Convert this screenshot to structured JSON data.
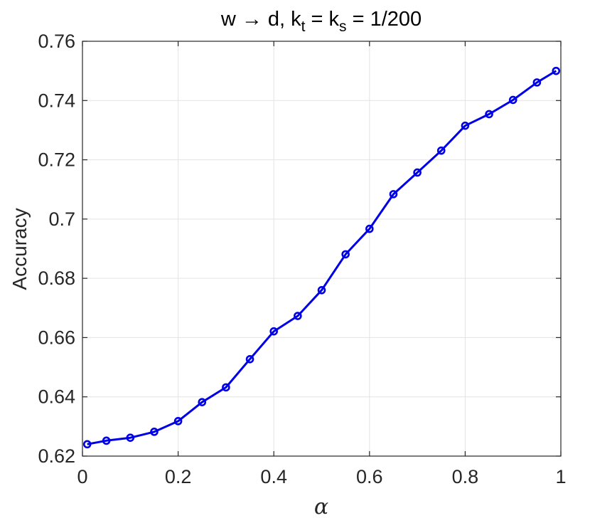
{
  "chart_data": {
    "type": "line",
    "title": {
      "prefix": "w → d, k",
      "sub1": "t",
      "mid": " = k",
      "sub2": "s",
      "suffix": " = 1/200"
    },
    "xlabel": "α",
    "ylabel": "Accuracy",
    "xlim": [
      0,
      1
    ],
    "ylim": [
      0.62,
      0.76
    ],
    "xticks": [
      0,
      0.2,
      0.4,
      0.6,
      0.8,
      1
    ],
    "xtick_labels": [
      "0",
      "0.2",
      "0.4",
      "0.6",
      "0.8",
      "1"
    ],
    "yticks": [
      0.62,
      0.64,
      0.66,
      0.68,
      0.7,
      0.72,
      0.74,
      0.76
    ],
    "ytick_labels": [
      "0.62",
      "0.64",
      "0.66",
      "0.68",
      "0.7",
      "0.72",
      "0.74",
      "0.76"
    ],
    "grid": true,
    "color": "#0000e6",
    "marker": "circle",
    "x": [
      0.01,
      0.05,
      0.1,
      0.15,
      0.2,
      0.25,
      0.3,
      0.35,
      0.4,
      0.45,
      0.5,
      0.55,
      0.6,
      0.65,
      0.7,
      0.75,
      0.8,
      0.85,
      0.9,
      0.95,
      0.99
    ],
    "y": [
      0.624,
      0.6252,
      0.6262,
      0.6282,
      0.6318,
      0.6382,
      0.6432,
      0.6527,
      0.6621,
      0.6673,
      0.676,
      0.6881,
      0.6967,
      0.7084,
      0.7157,
      0.7231,
      0.7315,
      0.7354,
      0.7402,
      0.7461,
      0.75
    ]
  }
}
